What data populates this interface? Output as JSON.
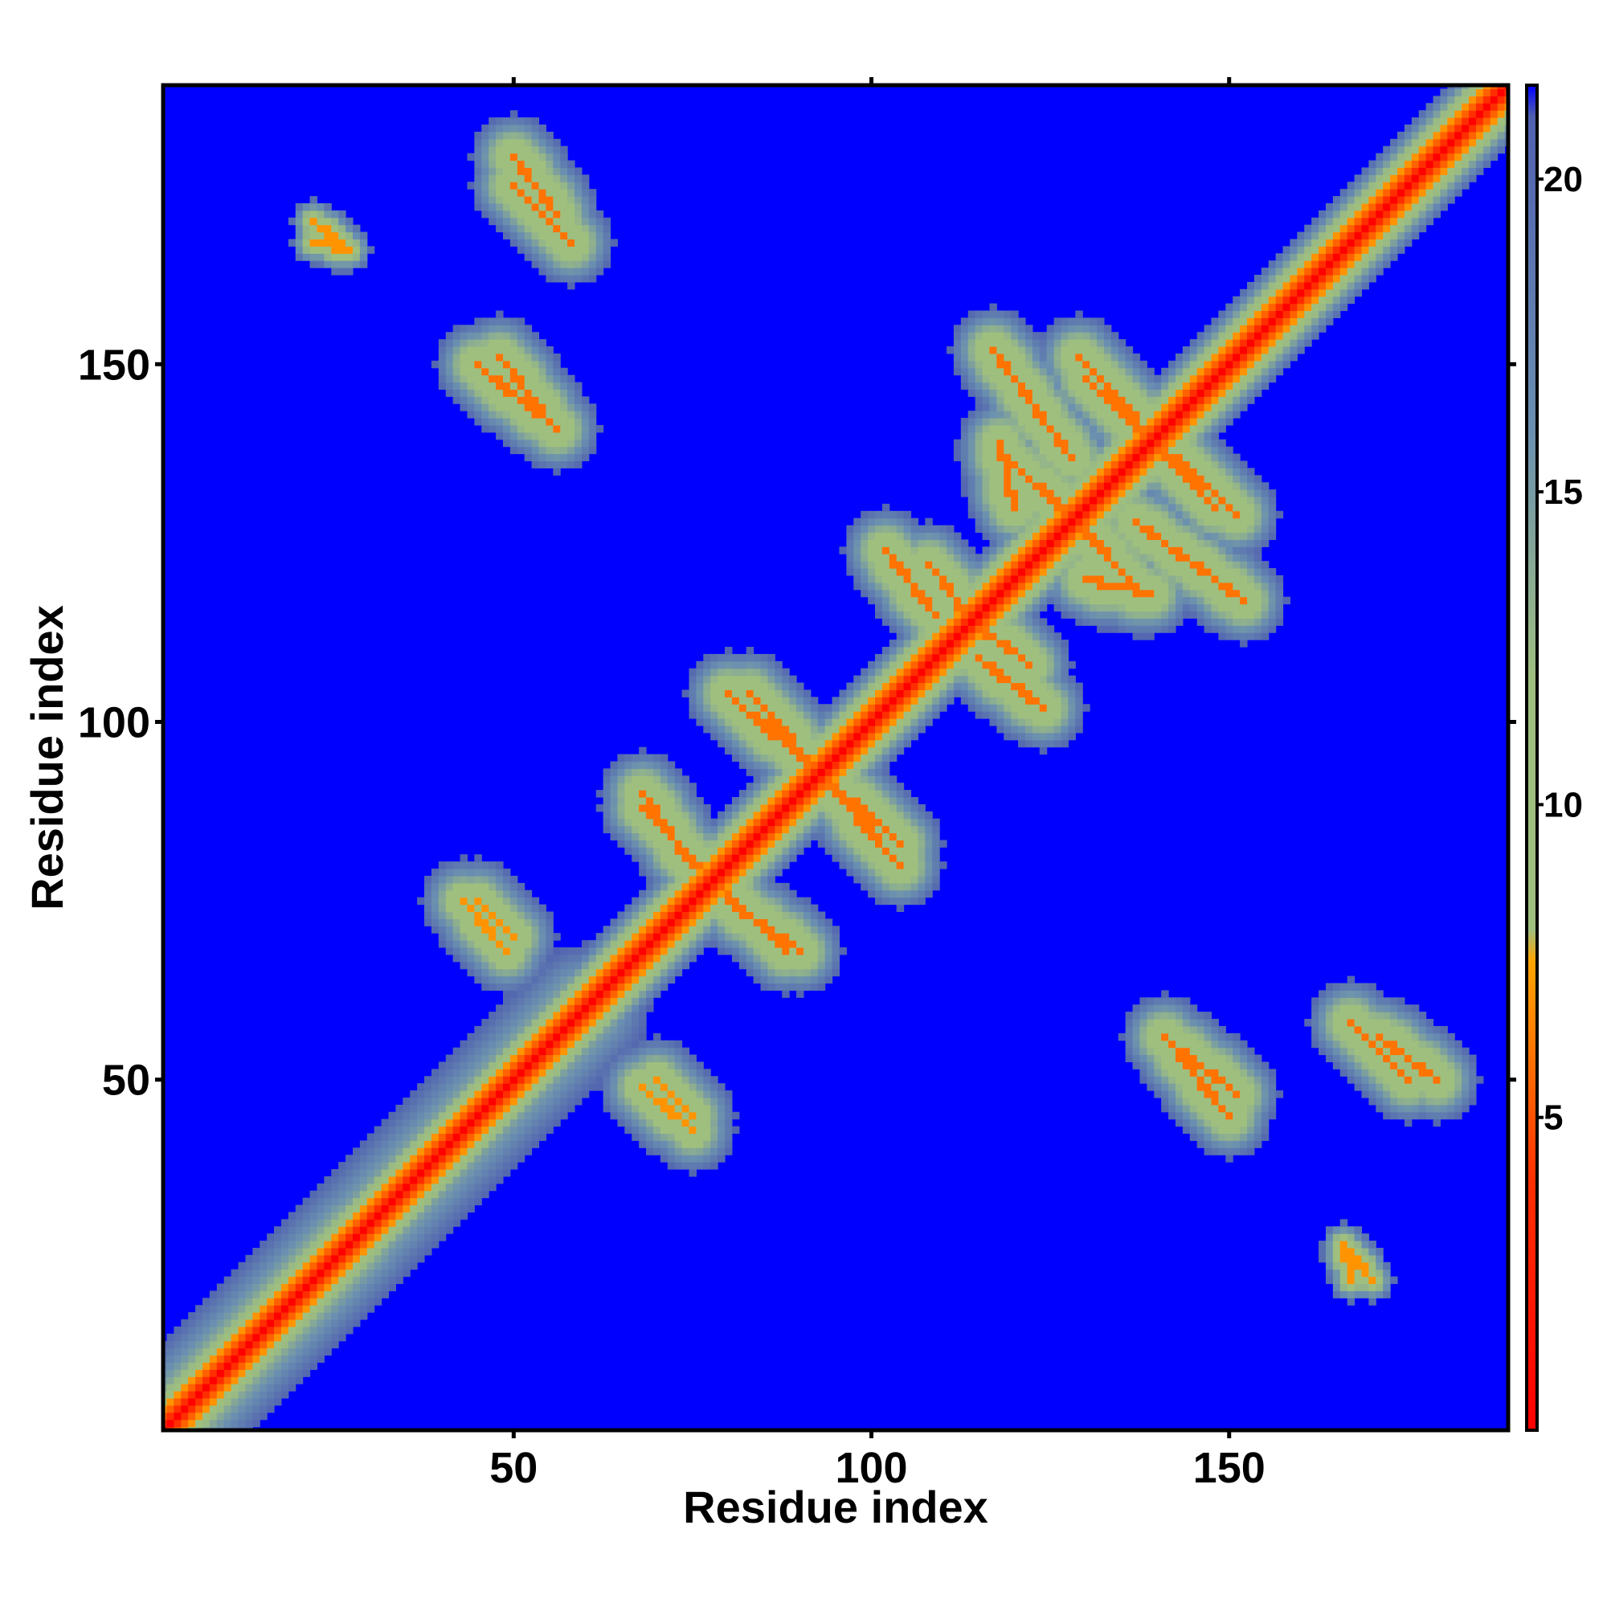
{
  "chart_data": {
    "type": "heatmap",
    "title": "",
    "xlabel": "Residue index",
    "ylabel": "Residue index",
    "xlim": [
      1,
      189
    ],
    "ylim": [
      1,
      189
    ],
    "x_ticks": [
      50,
      100,
      150
    ],
    "x_tick_labels": [
      "50",
      "100",
      "150"
    ],
    "y_ticks": [
      50,
      100,
      150
    ],
    "y_tick_labels": [
      "50",
      "100",
      "150"
    ],
    "grid": false,
    "legend_placement": "right",
    "colorbar": {
      "range": [
        0,
        21.5
      ],
      "ticks": [
        5,
        10,
        15,
        20
      ],
      "tick_labels": [
        "5",
        "10",
        "15",
        "20"
      ],
      "stops": [
        {
          "value": 0,
          "color": "#ff0000"
        },
        {
          "value": 4,
          "color": "#ff3000"
        },
        {
          "value": 7.5,
          "color": "#ffa500"
        },
        {
          "value": 8,
          "color": "#9fbf7f"
        },
        {
          "value": 12,
          "color": "#9fbf7f"
        },
        {
          "value": 16,
          "color": "#6a8fb0"
        },
        {
          "value": 21,
          "color": "#5060b0"
        },
        {
          "value": 21.5,
          "color": "#0000ff"
        }
      ]
    },
    "background_color": "#0000ff",
    "diagonal_color": "#ff0000",
    "contact_features": [
      {
        "x": [
          1,
          28
        ],
        "y": [
          1,
          28
        ],
        "kind": "diagonal-band",
        "min_value": 8
      },
      {
        "x": [
          28,
          60
        ],
        "y": [
          28,
          60
        ],
        "kind": "diagonal-band",
        "min_value": 9
      },
      {
        "x": [
          68,
          80
        ],
        "y": [
          88,
          76
        ],
        "kind": "strand-pair",
        "min_value": 6
      },
      {
        "x": [
          83,
          104
        ],
        "y": [
          104,
          80
        ],
        "kind": "strand-pair",
        "min_value": 6
      },
      {
        "x": [
          80,
          90
        ],
        "y": [
          75,
          68
        ],
        "kind": "strand-pair",
        "min_value": 6
      },
      {
        "x": [
          70,
          75
        ],
        "y": [
          50,
          45
        ],
        "kind": "strand-pair",
        "min_value": 7
      },
      {
        "x": [
          108,
          116
        ],
        "y": [
          122,
          112
        ],
        "kind": "strand-pair",
        "min_value": 6
      },
      {
        "x": [
          115,
          124
        ],
        "y": [
          109,
          102
        ],
        "kind": "strand-pair",
        "min_value": 6
      },
      {
        "x": [
          129,
          148
        ],
        "y": [
          151,
          130
        ],
        "kind": "strand-pair",
        "min_value": 6
      },
      {
        "x": [
          119,
          131
        ],
        "y": [
          137,
          126
        ],
        "kind": "strand-pair",
        "min_value": 6
      },
      {
        "x": [
          137,
          152
        ],
        "y": [
          128,
          117
        ],
        "kind": "strand-pair",
        "min_value": 6
      },
      {
        "x": [
          130,
          139
        ],
        "y": [
          120,
          118
        ],
        "kind": "strand-pair",
        "min_value": 6
      },
      {
        "x": [
          45,
          56
        ],
        "y": [
          150,
          141
        ],
        "kind": "strand-pair",
        "min_value": 6
      },
      {
        "x": [
          50,
          58
        ],
        "y": [
          175,
          167
        ],
        "kind": "strand-pair",
        "min_value": 6
      },
      {
        "x": [
          43,
          49
        ],
        "y": [
          75,
          68
        ],
        "kind": "strand-pair",
        "min_value": 7
      },
      {
        "x": [
          141,
          151
        ],
        "y": [
          56,
          48
        ],
        "kind": "strand-pair",
        "min_value": 6
      },
      {
        "x": [
          171,
          179
        ],
        "y": [
          56,
          50
        ],
        "kind": "strand-pair",
        "min_value": 6
      },
      {
        "x": [
          22,
          27
        ],
        "y": [
          170,
          166
        ],
        "kind": "isolated-contact",
        "min_value": 7
      },
      {
        "x": [
          166,
          167
        ],
        "y": [
          27,
          22
        ],
        "kind": "isolated-contact",
        "min_value": 7
      }
    ]
  }
}
